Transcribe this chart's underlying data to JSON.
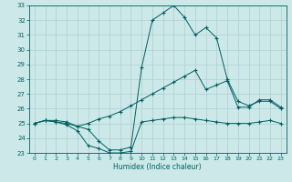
{
  "x": [
    0,
    1,
    2,
    3,
    4,
    5,
    6,
    7,
    8,
    9,
    10,
    11,
    12,
    13,
    14,
    15,
    16,
    17,
    18,
    19,
    20,
    21,
    22,
    23
  ],
  "line_top": [
    25.0,
    25.2,
    25.2,
    25.1,
    24.8,
    25.0,
    25.3,
    25.5,
    25.8,
    26.2,
    26.6,
    27.0,
    27.4,
    27.8,
    28.2,
    28.6,
    27.3,
    27.6,
    27.9,
    26.1,
    26.1,
    26.6,
    26.6,
    26.1
  ],
  "line_peak": [
    25.0,
    25.2,
    25.1,
    25.0,
    24.8,
    24.6,
    23.8,
    23.2,
    23.2,
    23.4,
    28.8,
    32.0,
    32.5,
    33.0,
    32.2,
    31.0,
    31.5,
    30.8,
    28.0,
    26.5,
    26.2,
    26.5,
    26.5,
    26.0
  ],
  "line_bot": [
    25.0,
    25.2,
    25.1,
    24.9,
    24.5,
    23.5,
    23.3,
    23.0,
    23.0,
    23.1,
    25.1,
    25.2,
    25.3,
    25.4,
    25.4,
    25.3,
    25.2,
    25.1,
    25.0,
    25.0,
    25.0,
    25.1,
    25.2,
    25.0
  ],
  "bg_color": "#cde8e8",
  "line_color": "#006060",
  "grid_color": "#aad0d0",
  "xlabel": "Humidex (Indice chaleur)",
  "ylim": [
    23,
    33
  ],
  "xlim": [
    -0.5,
    23.5
  ],
  "yticks": [
    23,
    24,
    25,
    26,
    27,
    28,
    29,
    30,
    31,
    32,
    33
  ],
  "xticks": [
    0,
    1,
    2,
    3,
    4,
    5,
    6,
    7,
    8,
    9,
    10,
    11,
    12,
    13,
    14,
    15,
    16,
    17,
    18,
    19,
    20,
    21,
    22,
    23
  ],
  "xlabel_fontsize": 5.5,
  "tick_fontsize": 4.5,
  "ytick_fontsize": 5.0
}
